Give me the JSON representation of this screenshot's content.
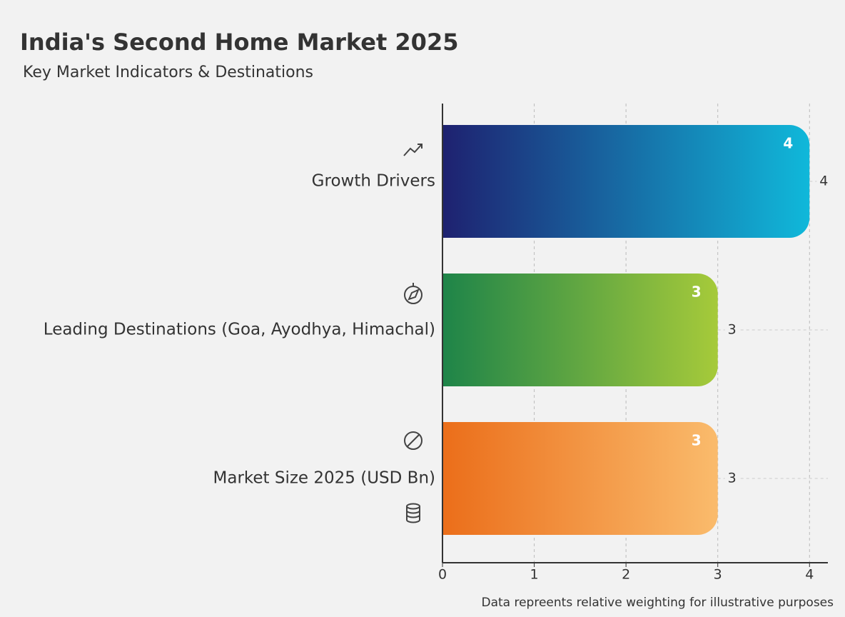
{
  "chart_data": {
    "type": "hbar",
    "title": "India's Second Home Market 2025",
    "subtitle": "Key Market Indicators & Destinations",
    "categories": [
      "Growth Drivers",
      "Leading Destinations (Goa, Ayodhya, Himachal)",
      "Market Size 2025 (USD Bn)"
    ],
    "values": [
      4,
      3,
      3
    ],
    "colors": [
      [
        "#1e2170",
        "#10b8da"
      ],
      [
        "#1e8449",
        "#a6ca3a"
      ],
      [
        "#eb6e1a",
        "#fabb6c"
      ]
    ],
    "xlim": [
      0,
      4.2
    ],
    "xticks": [
      0,
      1,
      2,
      3,
      4
    ],
    "grid": true,
    "note": "Data repreents relative weighting for illustrative purposes"
  }
}
